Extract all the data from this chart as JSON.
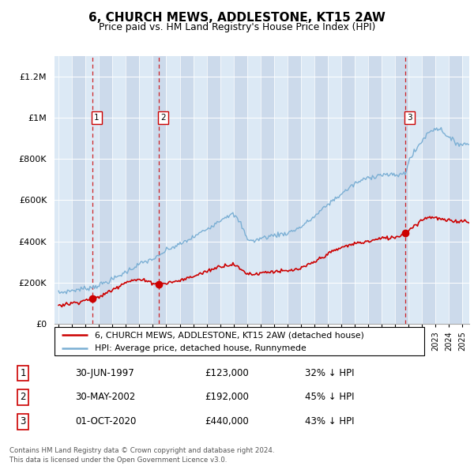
{
  "title": "6, CHURCH MEWS, ADDLESTONE, KT15 2AW",
  "subtitle": "Price paid vs. HM Land Registry's House Price Index (HPI)",
  "legend_line1": "6, CHURCH MEWS, ADDLESTONE, KT15 2AW (detached house)",
  "legend_line2": "HPI: Average price, detached house, Runnymede",
  "transactions": [
    {
      "num": 1,
      "date": "30-JUN-1997",
      "price": 123000,
      "pct": "32% ↓ HPI",
      "year_x": 1997.5
    },
    {
      "num": 2,
      "date": "30-MAY-2002",
      "price": 192000,
      "pct": "45% ↓ HPI",
      "year_x": 2002.42
    },
    {
      "num": 3,
      "date": "01-OCT-2020",
      "price": 440000,
      "pct": "43% ↓ HPI",
      "year_x": 2020.75
    }
  ],
  "price_color": "#cc0000",
  "hpi_color": "#7bafd4",
  "col_light": "#dce9f5",
  "col_dark": "#ccdaeb",
  "footer": "Contains HM Land Registry data © Crown copyright and database right 2024.\nThis data is licensed under the Open Government Licence v3.0.",
  "ylim": [
    0,
    1300000
  ],
  "xlim": [
    1994.7,
    2025.5
  ],
  "yticks": [
    0,
    200000,
    400000,
    600000,
    800000,
    1000000,
    1200000
  ]
}
